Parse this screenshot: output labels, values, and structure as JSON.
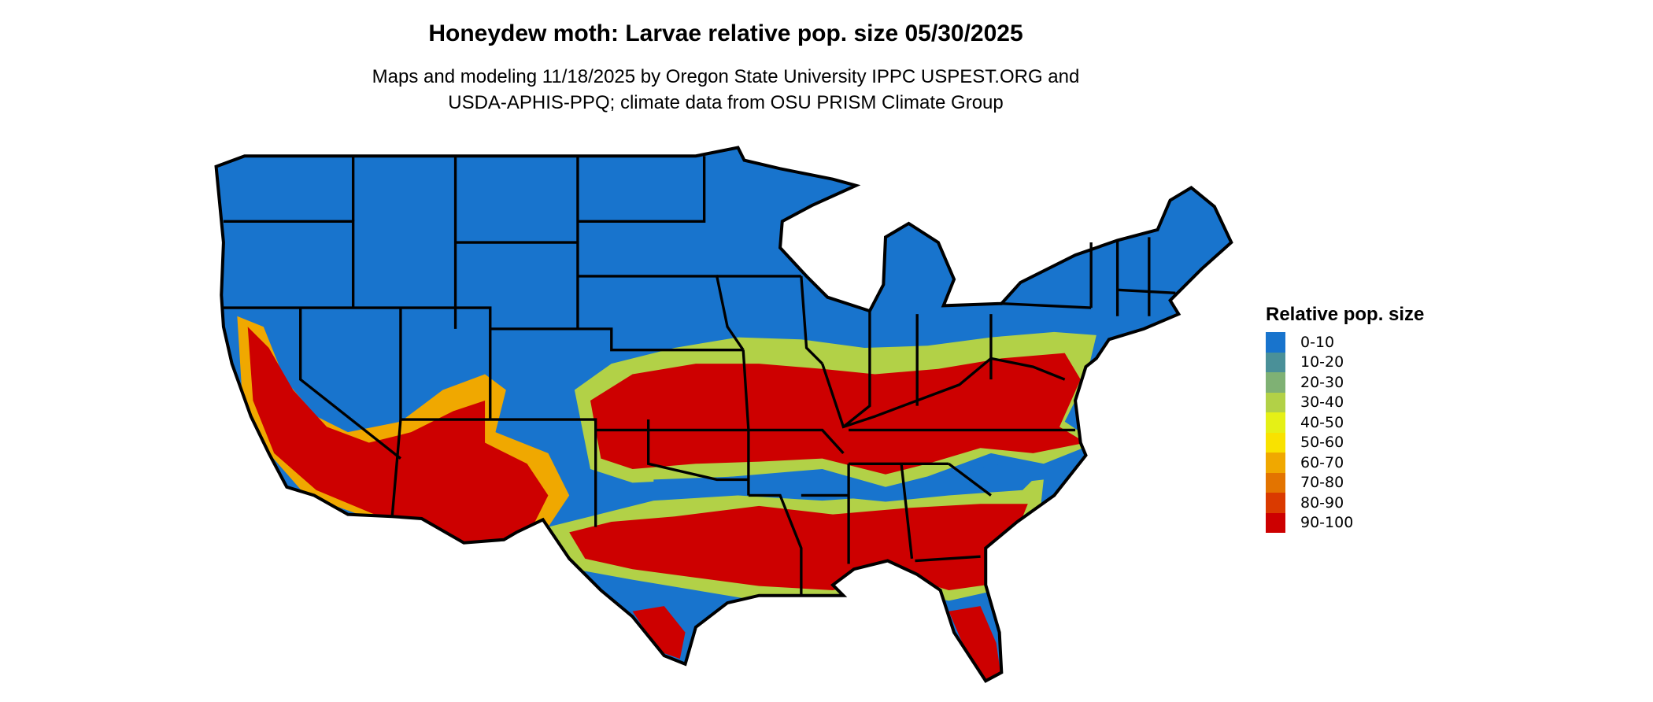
{
  "title": "Honeydew moth: Larvae relative pop. size 05/30/2025",
  "subtitle_line1": "Maps and modeling 11/18/2025 by Oregon State University IPPC USPEST.ORG and",
  "subtitle_line2": "USDA-APHIS-PPQ; climate data from OSU PRISM Climate Group",
  "legend": {
    "title": "Relative pop. size",
    "items": [
      {
        "label": "0-10",
        "color": "#1874CD"
      },
      {
        "label": "10-20",
        "color": "#4A9098"
      },
      {
        "label": "20-30",
        "color": "#7FB174"
      },
      {
        "label": "30-40",
        "color": "#B2D147"
      },
      {
        "label": "40-50",
        "color": "#E5F016"
      },
      {
        "label": "50-60",
        "color": "#F9E200"
      },
      {
        "label": "60-70",
        "color": "#F0A800"
      },
      {
        "label": "70-80",
        "color": "#E37400"
      },
      {
        "label": "80-90",
        "color": "#DA3A00"
      },
      {
        "label": "90-100",
        "color": "#CD0000"
      }
    ]
  }
}
